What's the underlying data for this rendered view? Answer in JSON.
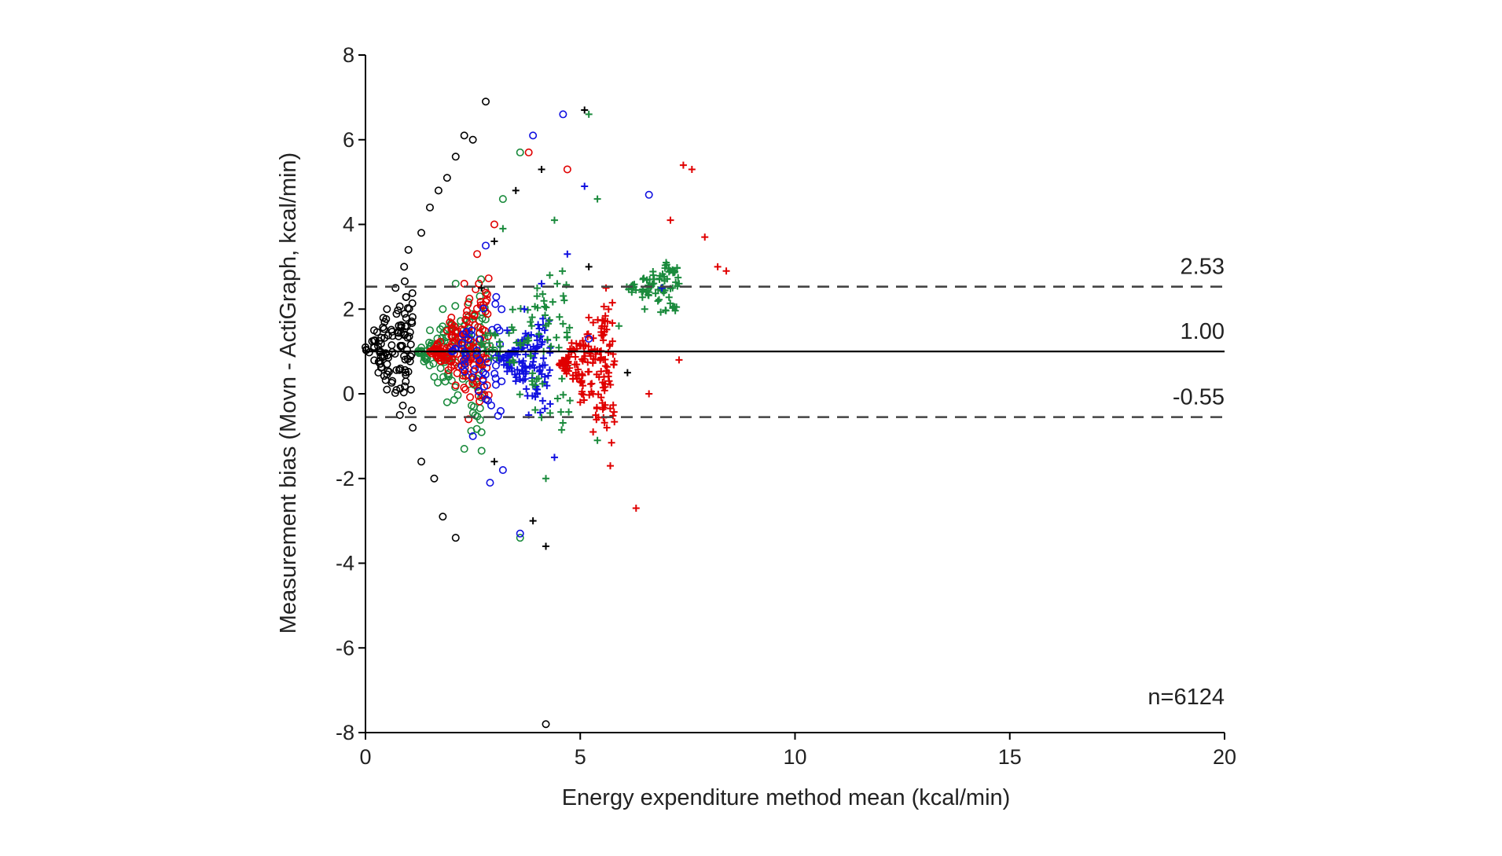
{
  "chart_data": {
    "type": "scatter",
    "title": "",
    "xlabel": "Energy expenditure method mean (kcal/min)",
    "ylabel": "Measurement bias (Movn - ActiGraph, kcal/min)",
    "xlim": [
      0,
      20
    ],
    "ylim": [
      -8,
      8
    ],
    "xticks": [
      0,
      5,
      10,
      15,
      20
    ],
    "yticks": [
      -8,
      -6,
      -4,
      -2,
      0,
      2,
      4,
      6,
      8
    ],
    "grid": false,
    "reference_lines": [
      {
        "label": "2.53",
        "y": 2.53,
        "style": "dashed"
      },
      {
        "label": "1.00",
        "y": 1.0,
        "style": "solid"
      },
      {
        "label": "-0.55",
        "y": -0.55,
        "style": "dashed"
      }
    ],
    "annotation": "n=6124",
    "series_style": [
      {
        "color": "#000000",
        "marker": "circle",
        "x": [
          0,
          2.5
        ],
        "y": [
          -3.5,
          7
        ]
      },
      {
        "color": "#1a8a3c",
        "marker": "circle",
        "x": [
          1.2,
          3.5
        ],
        "y": [
          -2.5,
          5.7
        ]
      },
      {
        "color": "#e00000",
        "marker": "circle",
        "x": [
          1.5,
          3.6
        ],
        "y": [
          -1.5,
          5.6
        ]
      },
      {
        "color": "#1010e0",
        "marker": "circle",
        "x": [
          2.0,
          6.6
        ],
        "y": [
          -3.3,
          6.6
        ]
      },
      {
        "color": "#000000",
        "marker": "plus",
        "x": [
          2.5,
          5.1
        ],
        "y": [
          -3.6,
          6.7
        ]
      },
      {
        "color": "#1010e0",
        "marker": "plus",
        "x": [
          2.8,
          5.3
        ],
        "y": [
          -1.8,
          4.9
        ]
      },
      {
        "color": "#1a8a3c",
        "marker": "plus",
        "x": [
          3.0,
          7.3
        ],
        "y": [
          -2.0,
          6.6
        ]
      },
      {
        "color": "#e00000",
        "marker": "plus",
        "x": [
          4.5,
          8.4
        ],
        "y": [
          -2.7,
          5.4
        ]
      }
    ],
    "points": [
      {
        "x": 0.0,
        "y": 1.1,
        "color": "#000000",
        "marker": "circle"
      },
      {
        "x": 0.2,
        "y": 1.5,
        "color": "#000000",
        "marker": "circle"
      },
      {
        "x": 0.3,
        "y": 0.5,
        "color": "#000000",
        "marker": "circle"
      },
      {
        "x": 0.5,
        "y": 2.0,
        "color": "#000000",
        "marker": "circle"
      },
      {
        "x": 0.5,
        "y": 0.1,
        "color": "#000000",
        "marker": "circle"
      },
      {
        "x": 0.7,
        "y": 2.5,
        "color": "#000000",
        "marker": "circle"
      },
      {
        "x": 0.8,
        "y": -0.5,
        "color": "#000000",
        "marker": "circle"
      },
      {
        "x": 0.9,
        "y": 3.0,
        "color": "#000000",
        "marker": "circle"
      },
      {
        "x": 1.0,
        "y": 3.4,
        "color": "#000000",
        "marker": "circle"
      },
      {
        "x": 1.1,
        "y": -0.8,
        "color": "#000000",
        "marker": "circle"
      },
      {
        "x": 1.3,
        "y": 3.8,
        "color": "#000000",
        "marker": "circle"
      },
      {
        "x": 1.3,
        "y": -1.6,
        "color": "#000000",
        "marker": "circle"
      },
      {
        "x": 1.5,
        "y": 4.4,
        "color": "#000000",
        "marker": "circle"
      },
      {
        "x": 1.6,
        "y": -2.0,
        "color": "#000000",
        "marker": "circle"
      },
      {
        "x": 1.7,
        "y": 4.8,
        "color": "#000000",
        "marker": "circle"
      },
      {
        "x": 1.8,
        "y": -2.9,
        "color": "#000000",
        "marker": "circle"
      },
      {
        "x": 1.9,
        "y": 5.1,
        "color": "#000000",
        "marker": "circle"
      },
      {
        "x": 2.1,
        "y": -3.4,
        "color": "#000000",
        "marker": "circle"
      },
      {
        "x": 2.1,
        "y": 5.6,
        "color": "#000000",
        "marker": "circle"
      },
      {
        "x": 2.3,
        "y": 6.1,
        "color": "#000000",
        "marker": "circle"
      },
      {
        "x": 2.5,
        "y": 6.0,
        "color": "#000000",
        "marker": "circle"
      },
      {
        "x": 2.8,
        "y": 6.9,
        "color": "#000000",
        "marker": "circle"
      },
      {
        "x": 4.2,
        "y": -7.8,
        "color": "#000000",
        "marker": "circle"
      },
      {
        "x": 1.3,
        "y": 1.0,
        "color": "#1a8a3c",
        "marker": "circle"
      },
      {
        "x": 1.5,
        "y": 1.5,
        "color": "#1a8a3c",
        "marker": "circle"
      },
      {
        "x": 1.6,
        "y": 0.4,
        "color": "#1a8a3c",
        "marker": "circle"
      },
      {
        "x": 1.8,
        "y": 2.0,
        "color": "#1a8a3c",
        "marker": "circle"
      },
      {
        "x": 1.9,
        "y": -0.2,
        "color": "#1a8a3c",
        "marker": "circle"
      },
      {
        "x": 2.1,
        "y": 2.6,
        "color": "#1a8a3c",
        "marker": "circle"
      },
      {
        "x": 2.3,
        "y": -1.3,
        "color": "#1a8a3c",
        "marker": "circle"
      },
      {
        "x": 3.2,
        "y": 4.6,
        "color": "#1a8a3c",
        "marker": "circle"
      },
      {
        "x": 3.6,
        "y": -3.4,
        "color": "#1a8a3c",
        "marker": "circle"
      },
      {
        "x": 3.6,
        "y": 5.7,
        "color": "#1a8a3c",
        "marker": "circle"
      },
      {
        "x": 1.7,
        "y": 1.0,
        "color": "#e00000",
        "marker": "circle"
      },
      {
        "x": 2.0,
        "y": 1.8,
        "color": "#e00000",
        "marker": "circle"
      },
      {
        "x": 2.1,
        "y": 0.2,
        "color": "#e00000",
        "marker": "circle"
      },
      {
        "x": 2.3,
        "y": 2.6,
        "color": "#e00000",
        "marker": "circle"
      },
      {
        "x": 2.4,
        "y": -0.6,
        "color": "#e00000",
        "marker": "circle"
      },
      {
        "x": 2.6,
        "y": 3.3,
        "color": "#e00000",
        "marker": "circle"
      },
      {
        "x": 3.0,
        "y": 4.0,
        "color": "#e00000",
        "marker": "circle"
      },
      {
        "x": 3.8,
        "y": 5.7,
        "color": "#e00000",
        "marker": "circle"
      },
      {
        "x": 4.7,
        "y": 5.3,
        "color": "#e00000",
        "marker": "circle"
      },
      {
        "x": 2.5,
        "y": -1.0,
        "color": "#1010e0",
        "marker": "circle"
      },
      {
        "x": 2.8,
        "y": 3.5,
        "color": "#1010e0",
        "marker": "circle"
      },
      {
        "x": 2.9,
        "y": -2.1,
        "color": "#1010e0",
        "marker": "circle"
      },
      {
        "x": 3.2,
        "y": -1.8,
        "color": "#1010e0",
        "marker": "circle"
      },
      {
        "x": 3.6,
        "y": -3.3,
        "color": "#1010e0",
        "marker": "circle"
      },
      {
        "x": 3.9,
        "y": 6.1,
        "color": "#1010e0",
        "marker": "circle"
      },
      {
        "x": 4.6,
        "y": 6.6,
        "color": "#1010e0",
        "marker": "circle"
      },
      {
        "x": 5.2,
        "y": 1.3,
        "color": "#1010e0",
        "marker": "circle"
      },
      {
        "x": 6.6,
        "y": 4.7,
        "color": "#1010e0",
        "marker": "circle"
      },
      {
        "x": 2.7,
        "y": 2.5,
        "color": "#000000",
        "marker": "plus"
      },
      {
        "x": 3.0,
        "y": 3.6,
        "color": "#000000",
        "marker": "plus"
      },
      {
        "x": 3.0,
        "y": -1.6,
        "color": "#000000",
        "marker": "plus"
      },
      {
        "x": 3.5,
        "y": 4.8,
        "color": "#000000",
        "marker": "plus"
      },
      {
        "x": 3.9,
        "y": -3.0,
        "color": "#000000",
        "marker": "plus"
      },
      {
        "x": 4.2,
        "y": -3.6,
        "color": "#000000",
        "marker": "plus"
      },
      {
        "x": 4.1,
        "y": 5.3,
        "color": "#000000",
        "marker": "plus"
      },
      {
        "x": 5.1,
        "y": 6.7,
        "color": "#000000",
        "marker": "plus"
      },
      {
        "x": 5.2,
        "y": 3.0,
        "color": "#000000",
        "marker": "plus"
      },
      {
        "x": 6.1,
        "y": 0.5,
        "color": "#000000",
        "marker": "plus"
      },
      {
        "x": 3.1,
        "y": 0.9,
        "color": "#1010e0",
        "marker": "plus"
      },
      {
        "x": 3.3,
        "y": 1.5,
        "color": "#1010e0",
        "marker": "plus"
      },
      {
        "x": 3.5,
        "y": 0.3,
        "color": "#1010e0",
        "marker": "plus"
      },
      {
        "x": 3.7,
        "y": 2.0,
        "color": "#1010e0",
        "marker": "plus"
      },
      {
        "x": 3.8,
        "y": -0.5,
        "color": "#1010e0",
        "marker": "plus"
      },
      {
        "x": 4.1,
        "y": 2.6,
        "color": "#1010e0",
        "marker": "plus"
      },
      {
        "x": 4.4,
        "y": -1.5,
        "color": "#1010e0",
        "marker": "plus"
      },
      {
        "x": 4.7,
        "y": 3.3,
        "color": "#1010e0",
        "marker": "plus"
      },
      {
        "x": 5.1,
        "y": 4.9,
        "color": "#1010e0",
        "marker": "plus"
      },
      {
        "x": 6.9,
        "y": 2.5,
        "color": "#1010e0",
        "marker": "plus"
      },
      {
        "x": 3.2,
        "y": 3.9,
        "color": "#1a8a3c",
        "marker": "plus"
      },
      {
        "x": 3.6,
        "y": 1.2,
        "color": "#1a8a3c",
        "marker": "plus"
      },
      {
        "x": 4.2,
        "y": -2.0,
        "color": "#1a8a3c",
        "marker": "plus"
      },
      {
        "x": 4.4,
        "y": 4.1,
        "color": "#1a8a3c",
        "marker": "plus"
      },
      {
        "x": 5.2,
        "y": 6.6,
        "color": "#1a8a3c",
        "marker": "plus"
      },
      {
        "x": 5.4,
        "y": 4.6,
        "color": "#1a8a3c",
        "marker": "plus"
      },
      {
        "x": 5.4,
        "y": -1.1,
        "color": "#1a8a3c",
        "marker": "plus"
      },
      {
        "x": 5.9,
        "y": 1.6,
        "color": "#1a8a3c",
        "marker": "plus"
      },
      {
        "x": 6.2,
        "y": 2.4,
        "color": "#1a8a3c",
        "marker": "plus"
      },
      {
        "x": 6.5,
        "y": 2.0,
        "color": "#1a8a3c",
        "marker": "plus"
      },
      {
        "x": 6.7,
        "y": 2.8,
        "color": "#1a8a3c",
        "marker": "plus"
      },
      {
        "x": 7.0,
        "y": 3.1,
        "color": "#1a8a3c",
        "marker": "plus"
      },
      {
        "x": 7.3,
        "y": 2.6,
        "color": "#1a8a3c",
        "marker": "plus"
      },
      {
        "x": 4.6,
        "y": 0.6,
        "color": "#e00000",
        "marker": "plus"
      },
      {
        "x": 4.8,
        "y": 1.2,
        "color": "#e00000",
        "marker": "plus"
      },
      {
        "x": 5.0,
        "y": -0.2,
        "color": "#e00000",
        "marker": "plus"
      },
      {
        "x": 5.2,
        "y": 1.8,
        "color": "#e00000",
        "marker": "plus"
      },
      {
        "x": 5.3,
        "y": -0.9,
        "color": "#e00000",
        "marker": "plus"
      },
      {
        "x": 5.6,
        "y": 2.5,
        "color": "#e00000",
        "marker": "plus"
      },
      {
        "x": 5.7,
        "y": -1.7,
        "color": "#e00000",
        "marker": "plus"
      },
      {
        "x": 6.3,
        "y": -2.7,
        "color": "#e00000",
        "marker": "plus"
      },
      {
        "x": 6.6,
        "y": 0.0,
        "color": "#e00000",
        "marker": "plus"
      },
      {
        "x": 7.1,
        "y": 4.1,
        "color": "#e00000",
        "marker": "plus"
      },
      {
        "x": 7.3,
        "y": 0.8,
        "color": "#e00000",
        "marker": "plus"
      },
      {
        "x": 7.4,
        "y": 5.4,
        "color": "#e00000",
        "marker": "plus"
      },
      {
        "x": 7.6,
        "y": 5.3,
        "color": "#e00000",
        "marker": "plus"
      },
      {
        "x": 7.9,
        "y": 3.7,
        "color": "#e00000",
        "marker": "plus"
      },
      {
        "x": 8.2,
        "y": 3.0,
        "color": "#e00000",
        "marker": "plus"
      },
      {
        "x": 8.4,
        "y": 2.9,
        "color": "#e00000",
        "marker": "plus"
      }
    ],
    "clusters": [
      {
        "color": "#000000",
        "marker": "circle",
        "x0": 0.0,
        "y0": 1.05,
        "xspan": 1.1,
        "ymin": -1.0,
        "ymax": 3.5,
        "n": 110
      },
      {
        "color": "#1a8a3c",
        "marker": "circle",
        "x0": 1.2,
        "y0": 1.0,
        "xspan": 1.6,
        "ymin": -1.6,
        "ymax": 3.0,
        "n": 120
      },
      {
        "color": "#e00000",
        "marker": "circle",
        "x0": 1.5,
        "y0": 1.0,
        "xspan": 1.4,
        "ymin": -1.0,
        "ymax": 3.3,
        "n": 160
      },
      {
        "color": "#1010e0",
        "marker": "circle",
        "x0": 2.0,
        "y0": 1.0,
        "xspan": 1.2,
        "ymin": -1.0,
        "ymax": 3.2,
        "n": 50
      },
      {
        "color": "#1010e0",
        "marker": "plus",
        "x0": 3.1,
        "y0": 0.8,
        "xspan": 1.2,
        "ymin": -0.9,
        "ymax": 2.2,
        "n": 120
      },
      {
        "color": "#1a8a3c",
        "marker": "plus",
        "x0": 2.6,
        "y0": 1.2,
        "xspan": 2.2,
        "ymin": -1.8,
        "ymax": 3.6,
        "n": 90
      },
      {
        "color": "#e00000",
        "marker": "plus",
        "x0": 4.5,
        "y0": 0.7,
        "xspan": 1.3,
        "ymin": -1.5,
        "ymax": 2.6,
        "n": 160
      },
      {
        "color": "#1a8a3c",
        "marker": "plus",
        "x0": 6.0,
        "y0": 2.5,
        "xspan": 1.3,
        "ymin": 1.6,
        "ymax": 3.3,
        "n": 80
      }
    ]
  }
}
